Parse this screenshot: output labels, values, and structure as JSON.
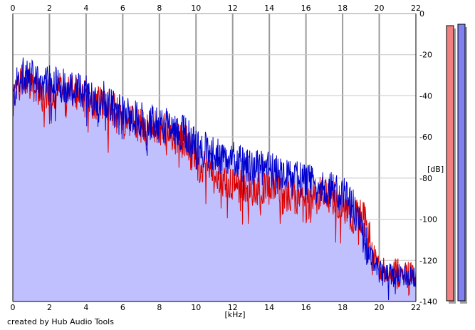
{
  "chart_data": {
    "type": "area",
    "title": "",
    "xlabel": "[kHz]",
    "ylabel": "[dB]",
    "xlim": [
      0,
      22
    ],
    "ylim": [
      -140,
      0
    ],
    "x_ticks": [
      0,
      2,
      4,
      6,
      8,
      10,
      12,
      14,
      16,
      18,
      20,
      22
    ],
    "x_tick_labels": [
      "0",
      "2",
      "4",
      "6",
      "8",
      "10",
      "12",
      "14",
      "16",
      "18",
      "20",
      "22"
    ],
    "y_ticks": [
      0,
      -20,
      -40,
      -60,
      -80,
      -100,
      -120,
      -140
    ],
    "y_tick_labels": [
      "0",
      "-20",
      "-40",
      "-60",
      "-80",
      "-100",
      "-120",
      "-140"
    ],
    "grid": true,
    "series": [
      {
        "color": "#0000cc",
        "fill": "#c0c0ff",
        "x": [
          0,
          0.3,
          0.6,
          1,
          1.5,
          2,
          2.5,
          3,
          3.5,
          4,
          4.5,
          5,
          5.5,
          6,
          6.5,
          7,
          7.5,
          8,
          8.5,
          9,
          9.5,
          10,
          10.5,
          11,
          11.5,
          12,
          12.5,
          13,
          13.5,
          14,
          14.5,
          15,
          15.5,
          16,
          16.5,
          17,
          17.5,
          18,
          18.3,
          18.6,
          18.9,
          19.2,
          19.5,
          19.8,
          20,
          20.5,
          21,
          21.5,
          22
        ],
        "values": [
          -42,
          -32,
          -30,
          -31,
          -36,
          -34,
          -34,
          -35,
          -37,
          -38,
          -42,
          -41,
          -46,
          -48,
          -50,
          -51,
          -53,
          -54,
          -55,
          -57,
          -59,
          -65,
          -66,
          -69,
          -71,
          -71,
          -73,
          -75,
          -75,
          -76,
          -78,
          -80,
          -80,
          -82,
          -83,
          -84,
          -86,
          -88,
          -90,
          -94,
          -102,
          -110,
          -118,
          -122,
          -126,
          -127,
          -127,
          -128,
          -129
        ]
      },
      {
        "color": "#dd0000",
        "x": [
          0,
          0.3,
          0.6,
          1,
          1.5,
          2,
          2.5,
          3,
          3.5,
          4,
          4.5,
          5,
          5.5,
          6,
          6.5,
          7,
          7.5,
          8,
          8.5,
          9,
          9.5,
          10,
          10.5,
          11,
          11.5,
          12,
          12.5,
          13,
          13.5,
          14,
          14.5,
          15,
          15.5,
          16,
          16.5,
          17,
          17.5,
          18,
          18.3,
          18.6,
          18.9,
          19.2,
          19.5,
          19.8,
          20,
          20.5,
          21,
          21.5,
          22
        ],
        "values": [
          -45,
          -34,
          -31,
          -33,
          -38,
          -38,
          -37,
          -38,
          -40,
          -41,
          -43,
          -43,
          -47,
          -50,
          -52,
          -55,
          -56,
          -55,
          -58,
          -60,
          -63,
          -72,
          -75,
          -79,
          -80,
          -82,
          -85,
          -84,
          -86,
          -85,
          -87,
          -88,
          -89,
          -95,
          -89,
          -87,
          -89,
          -92,
          -98,
          -100,
          -98,
          -100,
          -110,
          -120,
          -124,
          -125,
          -125,
          -126,
          -127
        ]
      }
    ]
  },
  "meters": {
    "left_color": "#f08080",
    "right_color": "#8080f0"
  },
  "credit": "created by Hub Audio Tools"
}
